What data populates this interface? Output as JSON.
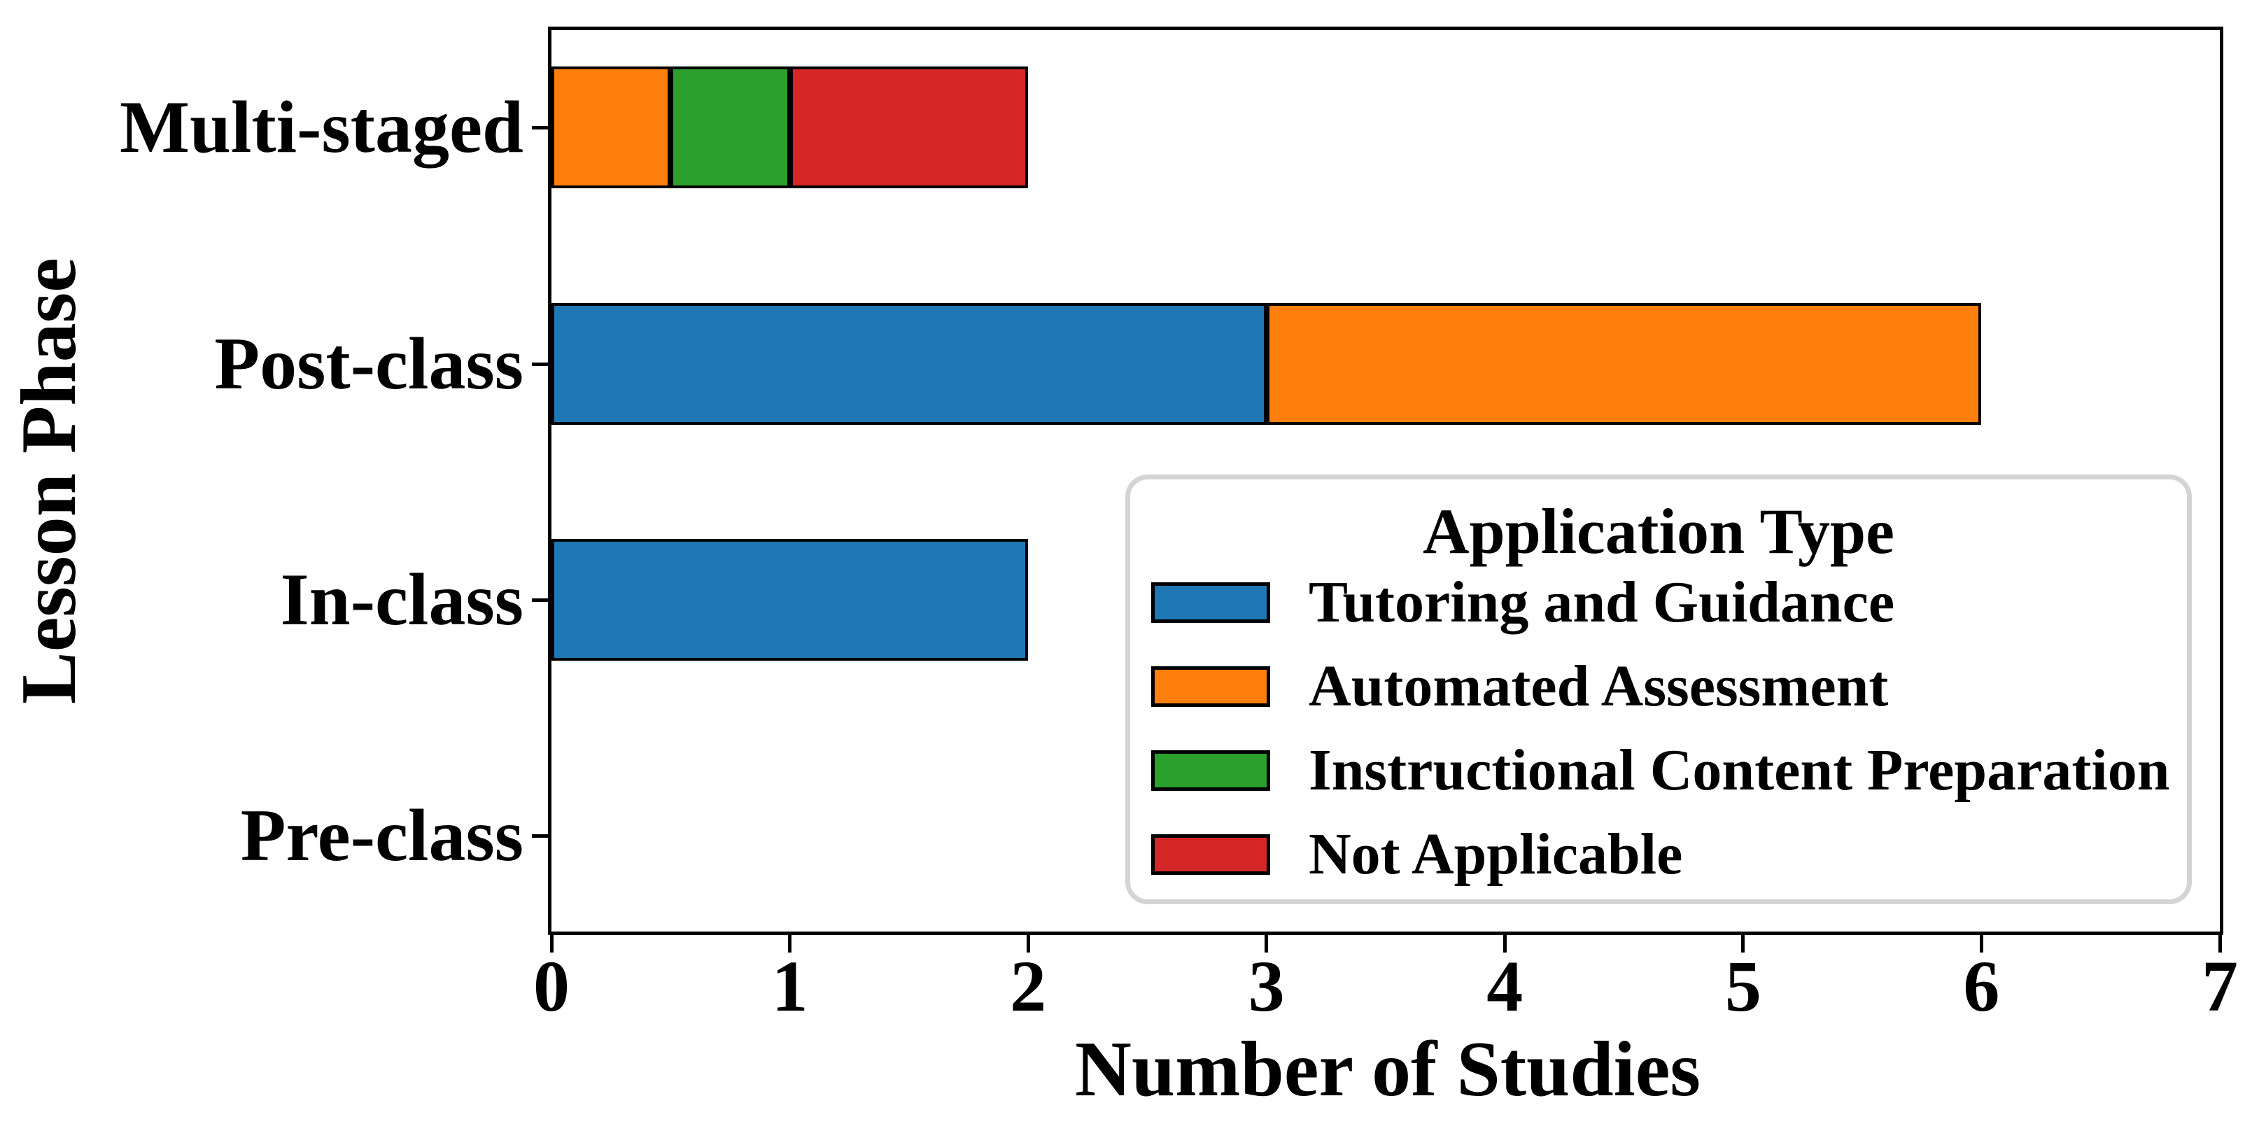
{
  "chart_data": {
    "type": "bar",
    "orientation": "horizontal",
    "stacked": true,
    "title": "",
    "xlabel": "Number of Studies",
    "ylabel": "Lesson Phase",
    "xlim": [
      0,
      7
    ],
    "xticks": [
      "0",
      "1",
      "2",
      "3",
      "4",
      "5",
      "6",
      "7"
    ],
    "grid": false,
    "categories": [
      "Multi-staged",
      "Post-class",
      "In-class",
      "Pre-class"
    ],
    "legend": {
      "title": "Application Type",
      "position": "lower right"
    },
    "series": [
      {
        "name": "Tutoring and Guidance",
        "color": "#1f77b4",
        "values": [
          0,
          3,
          2,
          0
        ]
      },
      {
        "name": "Automated Assessment",
        "color": "#ff7f0e",
        "values": [
          0.5,
          3,
          0,
          0
        ]
      },
      {
        "name": "Instructional Content Preparation",
        "color": "#2ca02c",
        "values": [
          0.5,
          0,
          0,
          0
        ]
      },
      {
        "name": "Not Applicable",
        "color": "#d62728",
        "values": [
          1,
          0,
          0,
          0
        ]
      }
    ],
    "bar_edge_color": "#000000",
    "category_totals": {
      "Multi-staged": 2,
      "Post-class": 6,
      "In-class": 2,
      "Pre-class": 0
    }
  }
}
